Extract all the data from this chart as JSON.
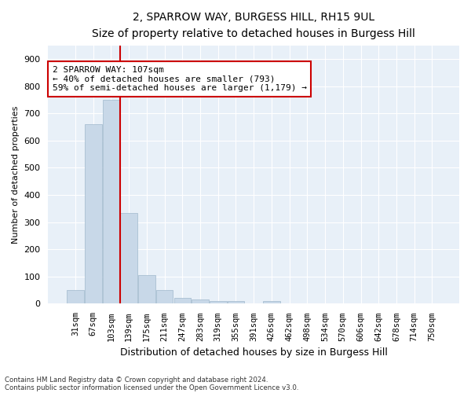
{
  "title1": "2, SPARROW WAY, BURGESS HILL, RH15 9UL",
  "title2": "Size of property relative to detached houses in Burgess Hill",
  "xlabel": "Distribution of detached houses by size in Burgess Hill",
  "ylabel": "Number of detached properties",
  "categories": [
    "31sqm",
    "67sqm",
    "103sqm",
    "139sqm",
    "175sqm",
    "211sqm",
    "247sqm",
    "283sqm",
    "319sqm",
    "355sqm",
    "391sqm",
    "426sqm",
    "462sqm",
    "498sqm",
    "534sqm",
    "570sqm",
    "606sqm",
    "642sqm",
    "678sqm",
    "714sqm",
    "750sqm"
  ],
  "values": [
    50,
    660,
    750,
    335,
    105,
    50,
    22,
    15,
    10,
    10,
    0,
    10,
    0,
    0,
    0,
    0,
    0,
    0,
    0,
    0,
    0
  ],
  "bar_color": "#c8d8e8",
  "bar_edgecolor": "#a0b8cc",
  "vline_index": 2.5,
  "vline_color": "#cc0000",
  "ylim": [
    0,
    950
  ],
  "yticks": [
    0,
    100,
    200,
    300,
    400,
    500,
    600,
    700,
    800,
    900
  ],
  "annotation_text": "2 SPARROW WAY: 107sqm\n← 40% of detached houses are smaller (793)\n59% of semi-detached houses are larger (1,179) →",
  "annotation_box_facecolor": "#ffffff",
  "annotation_box_edgecolor": "#cc0000",
  "bg_color": "#e8f0f8",
  "footer1": "Contains HM Land Registry data © Crown copyright and database right 2024.",
  "footer2": "Contains public sector information licensed under the Open Government Licence v3.0.",
  "title1_fontsize": 10,
  "title2_fontsize": 9,
  "ylabel_fontsize": 8,
  "xlabel_fontsize": 9
}
